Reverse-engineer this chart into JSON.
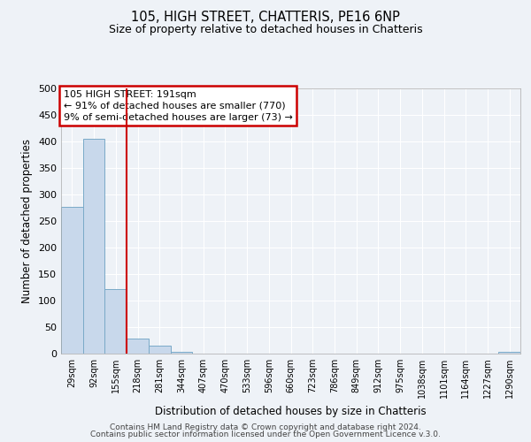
{
  "title": "105, HIGH STREET, CHATTERIS, PE16 6NP",
  "subtitle": "Size of property relative to detached houses in Chatteris",
  "xlabel": "Distribution of detached houses by size in Chatteris",
  "ylabel": "Number of detached properties",
  "bar_labels": [
    "29sqm",
    "92sqm",
    "155sqm",
    "218sqm",
    "281sqm",
    "344sqm",
    "407sqm",
    "470sqm",
    "533sqm",
    "596sqm",
    "660sqm",
    "723sqm",
    "786sqm",
    "849sqm",
    "912sqm",
    "975sqm",
    "1038sqm",
    "1101sqm",
    "1164sqm",
    "1227sqm",
    "1290sqm"
  ],
  "bar_values": [
    277,
    405,
    122,
    28,
    15,
    4,
    0,
    0,
    0,
    0,
    0,
    0,
    0,
    0,
    0,
    0,
    0,
    0,
    0,
    0,
    3
  ],
  "bar_color": "#c8d8eb",
  "bar_edge_color": "#7aaac8",
  "vline_x": 2.5,
  "vline_color": "#cc0000",
  "annotation_line1": "105 HIGH STREET: 191sqm",
  "annotation_line2": "← 91% of detached houses are smaller (770)",
  "annotation_line3": "9% of semi-detached houses are larger (73) →",
  "box_edge_color": "#cc0000",
  "ylim": [
    0,
    500
  ],
  "yticks": [
    0,
    50,
    100,
    150,
    200,
    250,
    300,
    350,
    400,
    450,
    500
  ],
  "background_color": "#eef2f7",
  "grid_color": "#ffffff",
  "footer_line1": "Contains HM Land Registry data © Crown copyright and database right 2024.",
  "footer_line2": "Contains public sector information licensed under the Open Government Licence v.3.0."
}
